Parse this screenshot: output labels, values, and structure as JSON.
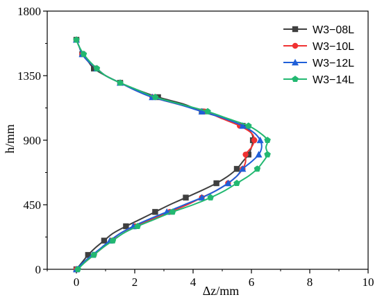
{
  "chart_data": {
    "type": "line",
    "xlabel": "Δz/mm",
    "ylabel": "h/mm",
    "xlim": [
      -1,
      10
    ],
    "ylim": [
      0,
      1800
    ],
    "xticks": [
      "0",
      "2",
      "4",
      "6",
      "8",
      "10"
    ],
    "xtick_values": [
      0,
      2,
      4,
      6,
      8,
      10
    ],
    "yticks": [
      "0",
      "450",
      "900",
      "1350",
      "1800"
    ],
    "ytick_values": [
      0,
      450,
      900,
      1350,
      1800
    ],
    "grid": false,
    "legend_position": "top-right",
    "series": [
      {
        "name": "W3−08L",
        "color": "#3f3f3f",
        "marker": "square",
        "points": [
          [
            0.0,
            0
          ],
          [
            0.2,
            50
          ],
          [
            0.4,
            100
          ],
          [
            0.65,
            150
          ],
          [
            0.95,
            200
          ],
          [
            1.25,
            250
          ],
          [
            1.7,
            300
          ],
          [
            2.2,
            350
          ],
          [
            2.7,
            400
          ],
          [
            3.2,
            450
          ],
          [
            3.75,
            500
          ],
          [
            4.3,
            550
          ],
          [
            4.8,
            600
          ],
          [
            5.2,
            650
          ],
          [
            5.5,
            700
          ],
          [
            5.7,
            750
          ],
          [
            5.9,
            800
          ],
          [
            6.0,
            850
          ],
          [
            6.05,
            900
          ],
          [
            6.0,
            950
          ],
          [
            5.7,
            1000
          ],
          [
            5.1,
            1050
          ],
          [
            4.3,
            1100
          ],
          [
            3.7,
            1150
          ],
          [
            2.8,
            1200
          ],
          [
            2.1,
            1250
          ],
          [
            1.5,
            1300
          ],
          [
            1.0,
            1350
          ],
          [
            0.6,
            1400
          ],
          [
            0.4,
            1450
          ],
          [
            0.2,
            1500
          ],
          [
            0.1,
            1550
          ],
          [
            0.0,
            1600
          ]
        ]
      },
      {
        "name": "W3−10L",
        "color": "#f03232",
        "marker": "circle",
        "points": [
          [
            0.0,
            0
          ],
          [
            0.3,
            50
          ],
          [
            0.6,
            100
          ],
          [
            0.9,
            150
          ],
          [
            1.2,
            200
          ],
          [
            1.5,
            250
          ],
          [
            2.0,
            300
          ],
          [
            2.6,
            350
          ],
          [
            3.2,
            400
          ],
          [
            3.8,
            450
          ],
          [
            4.3,
            500
          ],
          [
            4.8,
            550
          ],
          [
            5.2,
            600
          ],
          [
            5.5,
            650
          ],
          [
            5.7,
            700
          ],
          [
            5.8,
            750
          ],
          [
            5.8,
            800
          ],
          [
            6.0,
            850
          ],
          [
            6.1,
            900
          ],
          [
            6.0,
            950
          ],
          [
            5.6,
            1000
          ],
          [
            5.0,
            1050
          ],
          [
            4.4,
            1100
          ],
          [
            3.5,
            1150
          ],
          [
            2.6,
            1200
          ],
          [
            2.0,
            1250
          ],
          [
            1.5,
            1300
          ],
          [
            1.0,
            1350
          ],
          [
            0.7,
            1400
          ],
          [
            0.4,
            1450
          ],
          [
            0.2,
            1500
          ],
          [
            0.1,
            1550
          ],
          [
            0.0,
            1600
          ]
        ]
      },
      {
        "name": "W3−12L",
        "color": "#1f5fd8",
        "marker": "triangle",
        "points": [
          [
            0.0,
            0
          ],
          [
            0.25,
            50
          ],
          [
            0.55,
            100
          ],
          [
            0.85,
            150
          ],
          [
            1.15,
            200
          ],
          [
            1.5,
            250
          ],
          [
            1.95,
            300
          ],
          [
            2.5,
            350
          ],
          [
            3.1,
            400
          ],
          [
            3.7,
            450
          ],
          [
            4.3,
            500
          ],
          [
            4.8,
            550
          ],
          [
            5.2,
            600
          ],
          [
            5.5,
            650
          ],
          [
            5.7,
            700
          ],
          [
            6.0,
            750
          ],
          [
            6.25,
            800
          ],
          [
            6.35,
            850
          ],
          [
            6.3,
            900
          ],
          [
            6.1,
            950
          ],
          [
            5.7,
            1000
          ],
          [
            5.1,
            1050
          ],
          [
            4.3,
            1100
          ],
          [
            3.5,
            1150
          ],
          [
            2.6,
            1200
          ],
          [
            2.0,
            1250
          ],
          [
            1.5,
            1300
          ],
          [
            1.0,
            1350
          ],
          [
            0.7,
            1400
          ],
          [
            0.4,
            1450
          ],
          [
            0.2,
            1500
          ],
          [
            0.1,
            1550
          ],
          [
            0.0,
            1600
          ]
        ]
      },
      {
        "name": "W3−14L",
        "color": "#22b871",
        "marker": "pentagon",
        "points": [
          [
            0.05,
            0
          ],
          [
            0.3,
            50
          ],
          [
            0.6,
            100
          ],
          [
            0.9,
            150
          ],
          [
            1.25,
            200
          ],
          [
            1.6,
            250
          ],
          [
            2.1,
            300
          ],
          [
            2.7,
            350
          ],
          [
            3.3,
            400
          ],
          [
            4.0,
            450
          ],
          [
            4.6,
            500
          ],
          [
            5.1,
            550
          ],
          [
            5.5,
            600
          ],
          [
            5.9,
            650
          ],
          [
            6.2,
            700
          ],
          [
            6.4,
            750
          ],
          [
            6.55,
            800
          ],
          [
            6.5,
            850
          ],
          [
            6.55,
            900
          ],
          [
            6.3,
            950
          ],
          [
            5.9,
            1000
          ],
          [
            5.2,
            1050
          ],
          [
            4.5,
            1100
          ],
          [
            3.6,
            1150
          ],
          [
            2.7,
            1200
          ],
          [
            2.1,
            1250
          ],
          [
            1.5,
            1300
          ],
          [
            1.0,
            1350
          ],
          [
            0.7,
            1400
          ],
          [
            0.45,
            1450
          ],
          [
            0.25,
            1500
          ],
          [
            0.1,
            1550
          ],
          [
            0.0,
            1600
          ]
        ]
      }
    ]
  }
}
